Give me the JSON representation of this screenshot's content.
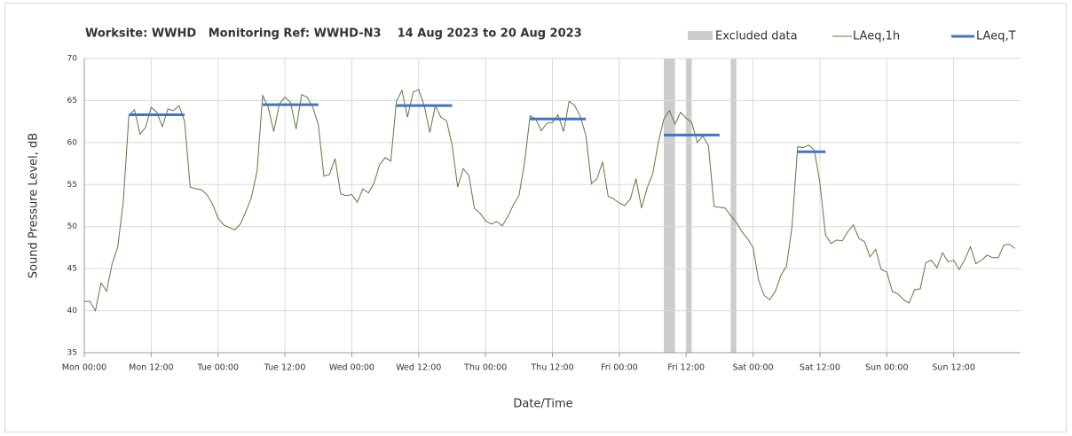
{
  "chart_data": {
    "type": "line",
    "title": "Worksite: WWHD   Monitoring Ref: WWHD-N3    14 Aug 2023 to 20 Aug 2023",
    "xlabel": "Date/Time",
    "ylabel": "Sound Pressure Level, dB",
    "xlim": [
      0,
      168
    ],
    "ylim": [
      35,
      70
    ],
    "yticks": [
      35,
      40,
      45,
      50,
      55,
      60,
      65,
      70
    ],
    "xticks": [
      {
        "value": 0,
        "label": "Mon 00:00"
      },
      {
        "value": 12,
        "label": "Mon 12:00"
      },
      {
        "value": 24,
        "label": "Tue 00:00"
      },
      {
        "value": 36,
        "label": "Tue 12:00"
      },
      {
        "value": 48,
        "label": "Wed 00:00"
      },
      {
        "value": 60,
        "label": "Wed 12:00"
      },
      {
        "value": 72,
        "label": "Thu 00:00"
      },
      {
        "value": 84,
        "label": "Thu 12:00"
      },
      {
        "value": 96,
        "label": "Fri 00:00"
      },
      {
        "value": 108,
        "label": "Fri 12:00"
      },
      {
        "value": 120,
        "label": "Sat 00:00"
      },
      {
        "value": 132,
        "label": "Sat 12:00"
      },
      {
        "value": 144,
        "label": "Sun 00:00"
      },
      {
        "value": 156,
        "label": "Sun 12:00"
      }
    ],
    "grid": true,
    "x": [
      0,
      1,
      2,
      3,
      4,
      5,
      6,
      7,
      8,
      9,
      10,
      11,
      12,
      13,
      14,
      15,
      16,
      17,
      18,
      19,
      20,
      21,
      22,
      23,
      24,
      25,
      26,
      27,
      28,
      29,
      30,
      31,
      32,
      33,
      34,
      35,
      36,
      37,
      38,
      39,
      40,
      41,
      42,
      43,
      44,
      45,
      46,
      47,
      48,
      49,
      50,
      51,
      52,
      53,
      54,
      55,
      56,
      57,
      58,
      59,
      60,
      61,
      62,
      63,
      64,
      65,
      66,
      67,
      68,
      69,
      70,
      71,
      72,
      73,
      74,
      75,
      76,
      77,
      78,
      79,
      80,
      81,
      82,
      83,
      84,
      85,
      86,
      87,
      88,
      89,
      90,
      91,
      92,
      93,
      94,
      95,
      96,
      97,
      98,
      99,
      100,
      101,
      102,
      103,
      104,
      105,
      106,
      107,
      108,
      109,
      110,
      111,
      112,
      113,
      114,
      115,
      116,
      117,
      118,
      119,
      120,
      121,
      122,
      123,
      124,
      125,
      126,
      127,
      128,
      129,
      130,
      131,
      132,
      133,
      134,
      135,
      136,
      137,
      138,
      139,
      140,
      141,
      142,
      143,
      144,
      145,
      146,
      147,
      148,
      149,
      150,
      151,
      152,
      153,
      154,
      155,
      156,
      157,
      158,
      159,
      160,
      161,
      162,
      163,
      164,
      165,
      166,
      167
    ],
    "series": [
      {
        "name": "LAeq,1h",
        "color": "#5b7b3b",
        "values": [
          41.1,
          41.1,
          40.0,
          43.3,
          42.3,
          45.6,
          47.6,
          53,
          63.2,
          63.9,
          61,
          61.8,
          64.2,
          63.6,
          61.9,
          64,
          63.8,
          64.4,
          62.5,
          54.7,
          54.5,
          54.4,
          53.8,
          52.7,
          51,
          50.2,
          49.9,
          49.6,
          50.3,
          51.8,
          53.5,
          56.6,
          65.6,
          64.2,
          61.3,
          64.6,
          65.4,
          64.8,
          61.6,
          65.7,
          65.4,
          64.2,
          62.1,
          56,
          56.2,
          58.1,
          53.9,
          53.7,
          53.8,
          52.9,
          54.5,
          54,
          55.2,
          57.4,
          58.2,
          57.8,
          64.9,
          66.2,
          63,
          66,
          66.3,
          64.4,
          61.2,
          64.4,
          63,
          62.6,
          59.7,
          54.7,
          56.9,
          56.1,
          52.2,
          51.6,
          50.7,
          50.3,
          50.6,
          50.1,
          51.2,
          52.6,
          53.7,
          57.6,
          63.2,
          62.8,
          61.4,
          62.3,
          62.4,
          63.3,
          61.3,
          64.9,
          64.4,
          63.1,
          60.9,
          55.1,
          55.7,
          57.7,
          53.6,
          53.3,
          52.8,
          52.5,
          53.3,
          55.7,
          52.2,
          54.6,
          56.3,
          60,
          62.8,
          63.8,
          62.2,
          63.6,
          62.9,
          62.4,
          60,
          60.8,
          59.6,
          52.4,
          52.3,
          52.2,
          51.3,
          50.5,
          49.4,
          48.6,
          47.5,
          43.6,
          41.8,
          41.3,
          42.3,
          44.2,
          45.3,
          50,
          59.5,
          59.4,
          59.7,
          59.1,
          55.2,
          49,
          48,
          48.4,
          48.3,
          49.4,
          50.2,
          48.6,
          48.2,
          46.4,
          47.3,
          44.9,
          44.6,
          42.3,
          42,
          41.3,
          40.9,
          42.5,
          42.6,
          45.7,
          46,
          45.1,
          46.9,
          45.8,
          46,
          44.9,
          46.1,
          47.6,
          45.6,
          46,
          46.6,
          46.3,
          46.3,
          47.8,
          47.9,
          47.4
        ]
      }
    ],
    "periods": {
      "name": "LAeq,T",
      "color": "#4472c4",
      "segments": [
        {
          "start": 8,
          "end": 18,
          "value": 63.3
        },
        {
          "start": 32,
          "end": 42,
          "value": 64.5
        },
        {
          "start": 56,
          "end": 66,
          "value": 64.4
        },
        {
          "start": 80,
          "end": 90,
          "value": 62.8
        },
        {
          "start": 104,
          "end": 114,
          "value": 60.9
        },
        {
          "start": 128,
          "end": 133,
          "value": 58.9
        }
      ]
    },
    "excluded": {
      "name": "Excluded data",
      "color": "#cccccc",
      "ranges": [
        [
          104,
          106
        ],
        [
          108,
          109
        ],
        [
          116,
          117
        ]
      ]
    }
  }
}
